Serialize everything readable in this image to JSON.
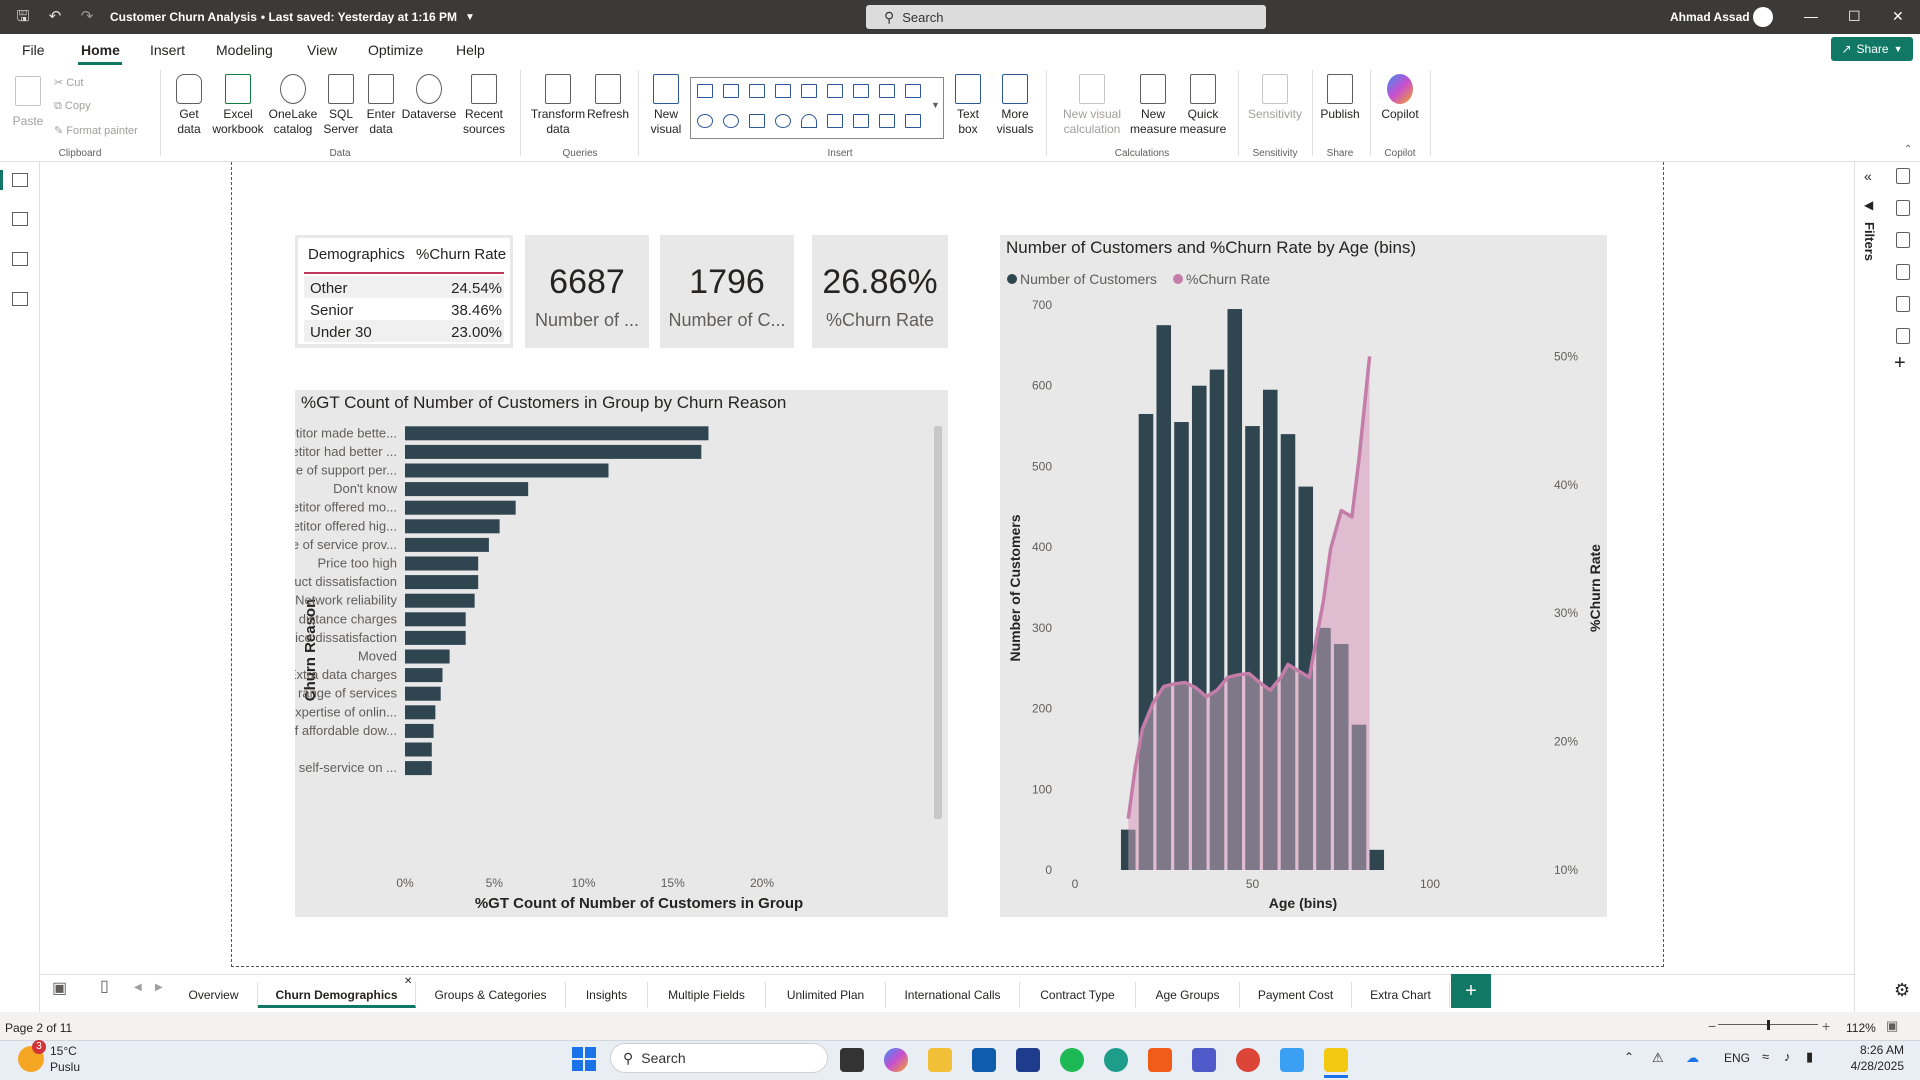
{
  "titlebar": {
    "doc_title": "Customer Churn Analysis",
    "saved_status": "• Last saved: Yesterday at 1:16 PM",
    "search_placeholder": "Search",
    "user": "Ahmad Assad"
  },
  "menu": [
    "File",
    "Home",
    "Insert",
    "Modeling",
    "View",
    "Optimize",
    "Help"
  ],
  "share_label": "Share",
  "ribbon": {
    "clipboard": {
      "paste": "Paste",
      "cut": "Cut",
      "copy": "Copy",
      "format_painter": "Format painter",
      "label": "Clipboard"
    },
    "data": {
      "get_data": "Get data",
      "excel": "Excel workbook",
      "onelake": "OneLake catalog",
      "sql": "SQL Server",
      "enter": "Enter data",
      "dataverse": "Dataverse",
      "recent": "Recent sources",
      "label": "Data"
    },
    "queries": {
      "transform": "Transform data",
      "refresh": "Refresh",
      "label": "Queries"
    },
    "insert": {
      "new_visual": "New visual",
      "text_box": "Text box",
      "more_visuals": "More visuals",
      "label": "Insert"
    },
    "calculations": {
      "new_visual_calc": "New visual calculation",
      "new_measure": "New measure",
      "quick_measure": "Quick measure",
      "label": "Calculations"
    },
    "sensitivity": {
      "btn": "Sensitivity",
      "label": "Sensitivity"
    },
    "share": {
      "publish": "Publish",
      "label": "Share"
    },
    "copilot": {
      "btn": "Copilot",
      "label": "Copilot"
    }
  },
  "table_visual": {
    "headers": [
      "Demographics",
      "%Churn Rate"
    ],
    "rows": [
      [
        "Other",
        "24.54%"
      ],
      [
        "Senior",
        "38.46%"
      ],
      [
        "Under 30",
        "23.00%"
      ]
    ]
  },
  "cards": [
    {
      "value": "6687",
      "label": "Number of ..."
    },
    {
      "value": "1796",
      "label": "Number of C..."
    },
    {
      "value": "26.86%",
      "label": "%Churn Rate"
    }
  ],
  "filters_label": "Filters",
  "page_tabs": [
    "Overview",
    "Churn Demographics",
    "Groups & Categories",
    "Insights",
    "Multiple Fields",
    "Unlimited Plan",
    "International Calls",
    "Contract Type",
    "Age Groups",
    "Payment Cost",
    "Extra Chart"
  ],
  "status": {
    "page": "Page 2 of 11",
    "zoom": "112%"
  },
  "taskbar": {
    "weather_temp": "15°C",
    "weather_desc": "Puslu",
    "weather_badge": "3",
    "search": "Search",
    "lang": "ENG",
    "time": "8:26 AM",
    "date": "4/28/2025"
  },
  "colors": {
    "accent": "#117865",
    "bar": "#2f4550",
    "churn_line": "#c47da8",
    "churn_area": "#dfb6cd"
  },
  "chart_data": [
    {
      "type": "bar",
      "orientation": "horizontal",
      "title": "%GT Count of Number of Customers in Group by Churn Reason",
      "xlabel": "%GT Count of Number of Customers in Group",
      "ylabel": "Churn Reason",
      "x_ticks": [
        "0%",
        "5%",
        "10%",
        "15%",
        "20%"
      ],
      "xlim": [
        0,
        20
      ],
      "categories": [
        "Competitor made bette...",
        "Competitor had better ...",
        "Attitude of support per...",
        "Don't know",
        "Competitor offered mo...",
        "Competitor offered hig...",
        "Attitude of service prov...",
        "Price too high",
        "Product dissatisfaction",
        "Network reliability",
        "Long distance charges",
        "Service dissatisfaction",
        "Moved",
        "Extra data charges",
        "Limited range of services",
        "Poor expertise of onlin...",
        "Lack of affordable dow...",
        "",
        "Lack of self-service on ..."
      ],
      "values": [
        17.0,
        16.6,
        11.4,
        6.9,
        6.2,
        5.3,
        4.7,
        4.1,
        4.1,
        3.9,
        3.4,
        3.4,
        2.5,
        2.1,
        2.0,
        1.7,
        1.6,
        1.5,
        1.5
      ]
    },
    {
      "type": "bar+line",
      "title": "Number of Customers and %Churn Rate by Age (bins)",
      "xlabel": "Age (bins)",
      "ylabel": "Number of Customers",
      "y2label": "%Churn Rate",
      "x_ticks": [
        "0",
        "50",
        "100"
      ],
      "y_ticks": [
        "0",
        "100",
        "200",
        "300",
        "400",
        "500",
        "600",
        "700"
      ],
      "y2_ticks": [
        "10%",
        "20%",
        "30%",
        "40%",
        "50%"
      ],
      "xlim": [
        0,
        100
      ],
      "ylim": [
        0,
        700
      ],
      "y2lim": [
        10,
        54
      ],
      "legend": [
        "Number of Customers",
        "%Churn Rate"
      ],
      "legend_position": "top-left",
      "series": [
        {
          "name": "Number of Customers",
          "x": [
            15,
            20,
            25,
            30,
            35,
            40,
            45,
            50,
            55,
            60,
            65,
            70,
            75,
            80,
            85
          ],
          "values": [
            50,
            565,
            675,
            555,
            600,
            620,
            695,
            550,
            595,
            540,
            475,
            300,
            280,
            180,
            25
          ]
        },
        {
          "name": "%Churn Rate",
          "x": [
            15,
            17,
            19,
            22,
            25,
            28,
            31,
            34,
            37,
            40,
            43,
            46,
            49,
            52,
            55,
            58,
            60,
            63,
            66,
            70,
            72,
            75,
            78,
            80,
            83
          ],
          "values": [
            14,
            18,
            21,
            23,
            24.3,
            24.5,
            24.6,
            24.2,
            23.5,
            24,
            25,
            25.2,
            25.3,
            24.6,
            24,
            25,
            26,
            25.5,
            25,
            31,
            35,
            38,
            37.5,
            42,
            50
          ]
        }
      ]
    }
  ]
}
